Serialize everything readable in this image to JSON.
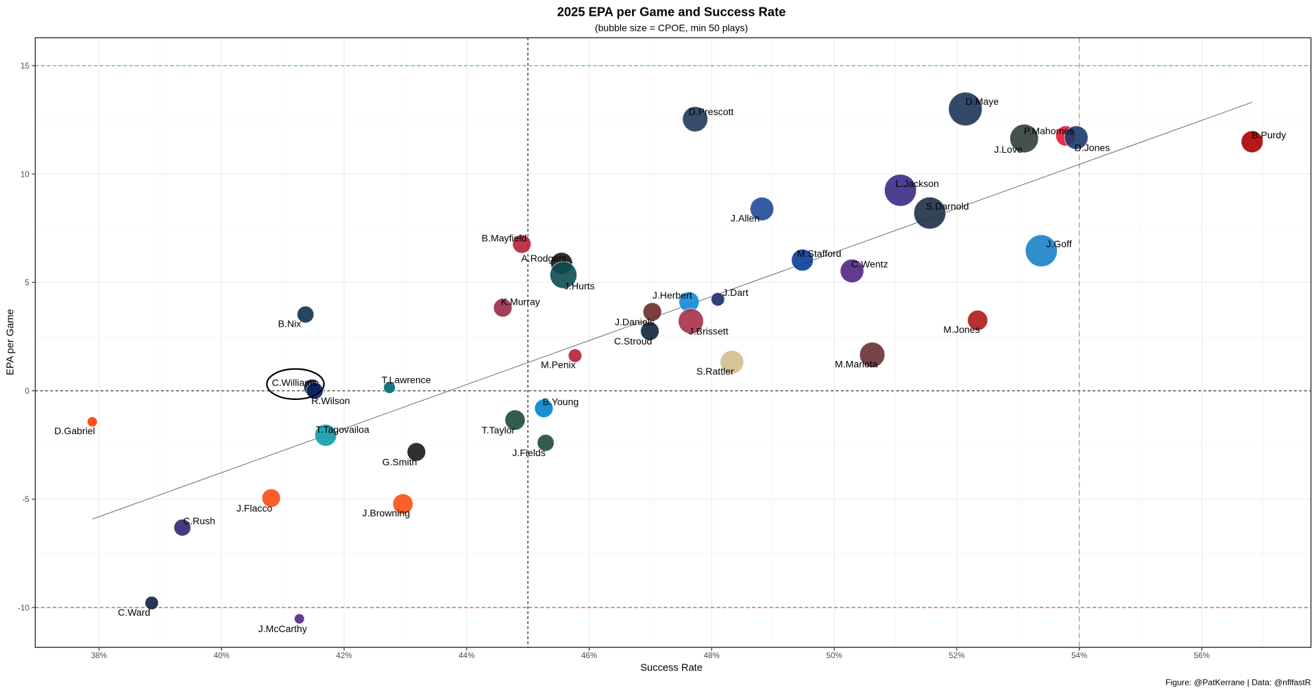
{
  "chart_data": {
    "type": "scatter",
    "title": "2025 EPA per Game and Success Rate",
    "subtitle": "(bubble size = CPOE, min 50 plays)",
    "xlabel": "Success Rate",
    "ylabel": "EPA per Game",
    "caption": "Figure: @PatKerrane | Data: @nflfastR",
    "xlim": [
      37.0,
      57.8
    ],
    "ylim": [
      -11.8,
      16.3
    ],
    "x_ticks": [
      38,
      40,
      42,
      44,
      46,
      48,
      50,
      52,
      54,
      56
    ],
    "x_tick_labels": [
      "38%",
      "40%",
      "42%",
      "44%",
      "46%",
      "48%",
      "50%",
      "52%",
      "54%",
      "56%"
    ],
    "y_ticks": [
      -10,
      -5,
      0,
      5,
      10,
      15
    ],
    "y_tick_labels": [
      "-10",
      "-5",
      "0",
      "5",
      "10",
      "15"
    ],
    "grid": true,
    "reference_lines": {
      "vertical_dashed": [
        45,
        54
      ],
      "horizontal_dashed": [
        0
      ],
      "upper_line": {
        "y": 15,
        "color": "#33cc33"
      },
      "lower_line": {
        "y": -10,
        "color": "#ff3333"
      }
    },
    "trend": {
      "x": [
        37.89,
        56.82
      ],
      "y": [
        -5.92,
        13.31
      ],
      "color": "#666666"
    },
    "highlight": "C.Williams",
    "points": [
      {
        "name": "D.Maye",
        "x": 52.14,
        "y": 13.0,
        "size": 20,
        "color": "#1d3557"
      },
      {
        "name": "D.Prescott",
        "x": 47.73,
        "y": 12.53,
        "size": 15,
        "color": "#1f3a5a"
      },
      {
        "name": "P.Mahomes",
        "x": 53.78,
        "y": 11.76,
        "size": 12,
        "color": "#e31837"
      },
      {
        "name": "D.Jones",
        "x": 53.95,
        "y": 11.68,
        "size": 14,
        "color": "#1b3a6b"
      },
      {
        "name": "J.Love",
        "x": 53.1,
        "y": 11.64,
        "size": 17,
        "color": "#2f3f36"
      },
      {
        "name": "B.Purdy",
        "x": 56.82,
        "y": 11.49,
        "size": 13,
        "color": "#aa0000"
      },
      {
        "name": "L.Jackson",
        "x": 51.08,
        "y": 9.25,
        "size": 19,
        "color": "#3a2a85"
      },
      {
        "name": "S.Darnold",
        "x": 51.56,
        "y": 8.2,
        "size": 19,
        "color": "#1e3048"
      },
      {
        "name": "J.Allen",
        "x": 48.82,
        "y": 8.39,
        "size": 14,
        "color": "#1d4a9a"
      },
      {
        "name": "J.Goff",
        "x": 53.38,
        "y": 6.46,
        "size": 19,
        "color": "#1a82c8"
      },
      {
        "name": "B.Mayfield",
        "x": 44.9,
        "y": 6.77,
        "size": 11,
        "color": "#b5213a"
      },
      {
        "name": "A.Rodgers",
        "x": 45.55,
        "y": 5.88,
        "size": 13,
        "color": "#1a1a1a"
      },
      {
        "name": "J.Hurts",
        "x": 45.58,
        "y": 5.34,
        "size": 16,
        "color": "#0b4c4f"
      },
      {
        "name": "M.Stafford",
        "x": 49.48,
        "y": 6.03,
        "size": 13,
        "color": "#0a3b9a"
      },
      {
        "name": "C.Wentz",
        "x": 50.29,
        "y": 5.53,
        "size": 14,
        "color": "#4f2683"
      },
      {
        "name": "J.Dart",
        "x": 48.1,
        "y": 4.22,
        "size": 8,
        "color": "#1b2a6b"
      },
      {
        "name": "J.Herbert",
        "x": 47.63,
        "y": 4.1,
        "size": 12,
        "color": "#0f8ad8"
      },
      {
        "name": "J.Daniels",
        "x": 47.03,
        "y": 3.64,
        "size": 11,
        "color": "#6b2a2a"
      },
      {
        "name": "J.Brissett",
        "x": 47.66,
        "y": 3.21,
        "size": 15,
        "color": "#a8304a"
      },
      {
        "name": "C.Stroud",
        "x": 46.99,
        "y": 2.75,
        "size": 11,
        "color": "#0f2638"
      },
      {
        "name": "K.Murray",
        "x": 44.59,
        "y": 3.83,
        "size": 11,
        "color": "#9a2a45"
      },
      {
        "name": "B.Nix",
        "x": 41.37,
        "y": 3.52,
        "size": 10,
        "color": "#12304f"
      },
      {
        "name": "M.Jones",
        "x": 52.34,
        "y": 3.25,
        "size": 12,
        "color": "#b01818"
      },
      {
        "name": "M.Penix",
        "x": 45.77,
        "y": 1.62,
        "size": 8,
        "color": "#b3203a"
      },
      {
        "name": "M.Mariota",
        "x": 50.62,
        "y": 1.66,
        "size": 15,
        "color": "#6b2f32"
      },
      {
        "name": "S.Rattler",
        "x": 48.33,
        "y": 1.32,
        "size": 14,
        "color": "#d3bc8d"
      },
      {
        "name": "T.Lawrence",
        "x": 42.74,
        "y": 0.15,
        "size": 7,
        "color": "#006778"
      },
      {
        "name": "C.Williams",
        "x": 41.48,
        "y": 0.15,
        "size": 10,
        "color": "#0b162a"
      },
      {
        "name": "R.Wilson",
        "x": 41.52,
        "y": 0.0,
        "size": 10,
        "color": "#0b2265"
      },
      {
        "name": "B.Young",
        "x": 45.26,
        "y": -0.81,
        "size": 11,
        "color": "#0085ca"
      },
      {
        "name": "D.Gabriel",
        "x": 37.89,
        "y": -1.43,
        "size": 6,
        "color": "#ff3c00"
      },
      {
        "name": "T.Taylor",
        "x": 44.79,
        "y": -1.35,
        "size": 12,
        "color": "#1f4a3a"
      },
      {
        "name": "T.Tagovailoa",
        "x": 41.7,
        "y": -2.05,
        "size": 13,
        "color": "#0f9ba8"
      },
      {
        "name": "J.Fields",
        "x": 45.29,
        "y": -2.4,
        "size": 10,
        "color": "#1f4a3a"
      },
      {
        "name": "G.Smith",
        "x": 43.18,
        "y": -2.82,
        "size": 11,
        "color": "#1a1a1a"
      },
      {
        "name": "J.Flacco",
        "x": 40.81,
        "y": -4.95,
        "size": 11,
        "color": "#fb4f14"
      },
      {
        "name": "J.Browning",
        "x": 42.96,
        "y": -5.22,
        "size": 12,
        "color": "#fb4f14"
      },
      {
        "name": "C.Rush",
        "x": 39.36,
        "y": -6.31,
        "size": 10,
        "color": "#2d2670"
      },
      {
        "name": "C.Ward",
        "x": 38.86,
        "y": -9.79,
        "size": 8,
        "color": "#0c2340"
      },
      {
        "name": "J.McCarthy",
        "x": 41.27,
        "y": -10.52,
        "size": 6,
        "color": "#4f2683"
      }
    ]
  }
}
